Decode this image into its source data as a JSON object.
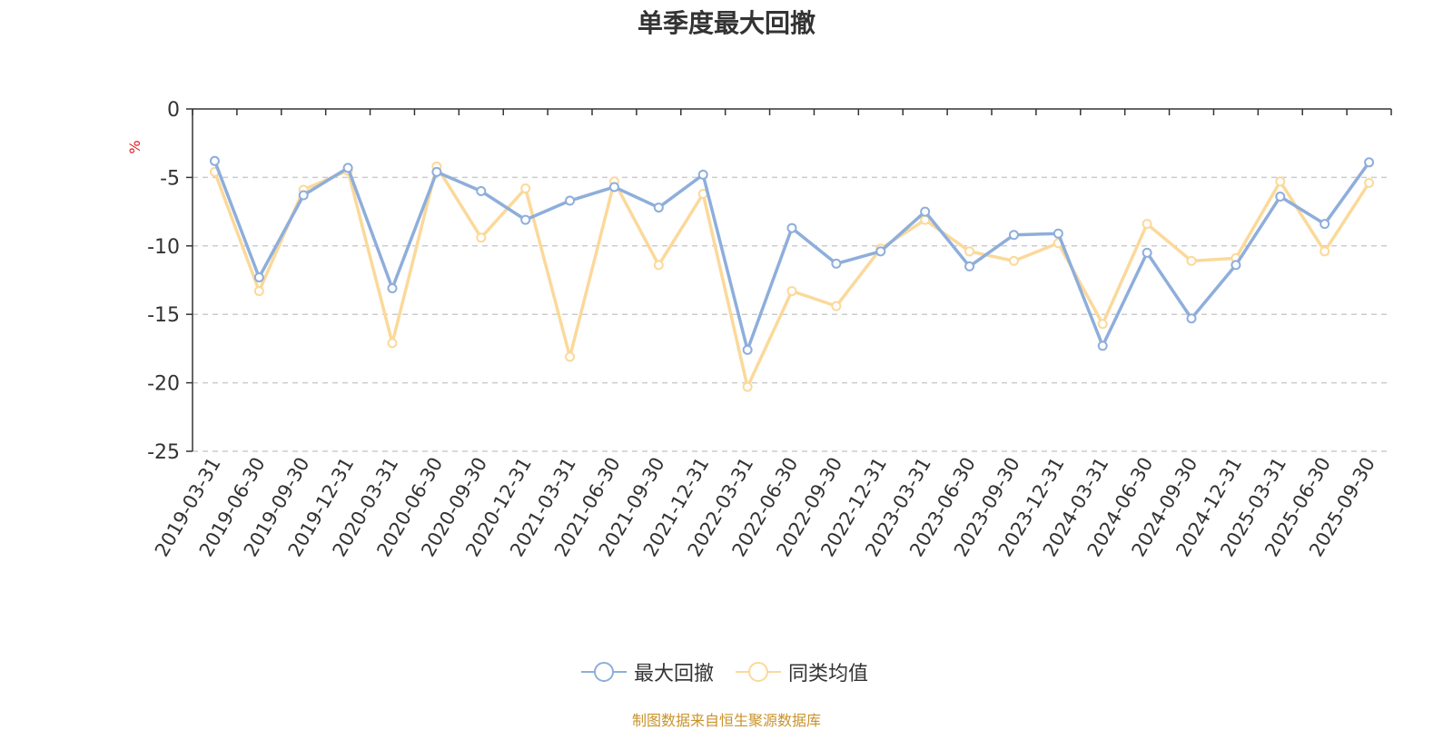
{
  "title": "单季度最大回撤",
  "source_note": "制图数据来自恒生聚源数据库",
  "chart_data": {
    "type": "line",
    "ylabel": "%",
    "ylim": [
      -25,
      0
    ],
    "yticks": [
      0,
      -5,
      -10,
      -15,
      -20,
      -25
    ],
    "grid": true,
    "legend_position": "bottom",
    "categories": [
      "2019-03-31",
      "2019-06-30",
      "2019-09-30",
      "2019-12-31",
      "2020-03-31",
      "2020-06-30",
      "2020-09-30",
      "2020-12-31",
      "2021-03-31",
      "2021-06-30",
      "2021-09-30",
      "2021-12-31",
      "2022-03-31",
      "2022-06-30",
      "2022-09-30",
      "2022-12-31",
      "2023-03-31",
      "2023-06-30",
      "2023-09-30",
      "2023-12-31",
      "2024-03-31",
      "2024-06-30",
      "2024-09-30",
      "2024-12-31",
      "2025-03-31",
      "2025-06-30",
      "2025-09-30"
    ],
    "series": [
      {
        "name": "最大回撤",
        "color": "#8eaedb",
        "values": [
          -3.8,
          -12.3,
          -6.3,
          -4.3,
          -13.1,
          -4.6,
          -6.0,
          -8.1,
          -6.7,
          -5.7,
          -7.2,
          -4.8,
          -17.6,
          -8.7,
          -11.3,
          -10.4,
          -7.5,
          -11.5,
          -9.2,
          -9.1,
          -17.3,
          -10.5,
          -15.3,
          -11.4,
          -6.4,
          -8.4,
          -3.9
        ]
      },
      {
        "name": "同类均值",
        "color": "#fbd99a",
        "values": [
          -4.6,
          -13.3,
          -5.9,
          -4.5,
          -17.1,
          -4.2,
          -9.4,
          -5.8,
          -18.1,
          -5.3,
          -11.4,
          -6.2,
          -20.3,
          -13.3,
          -14.4,
          -10.2,
          -8.1,
          -10.4,
          -11.1,
          -9.8,
          -15.7,
          -8.4,
          -11.1,
          -10.9,
          -5.3,
          -10.4,
          -5.4
        ]
      }
    ]
  }
}
